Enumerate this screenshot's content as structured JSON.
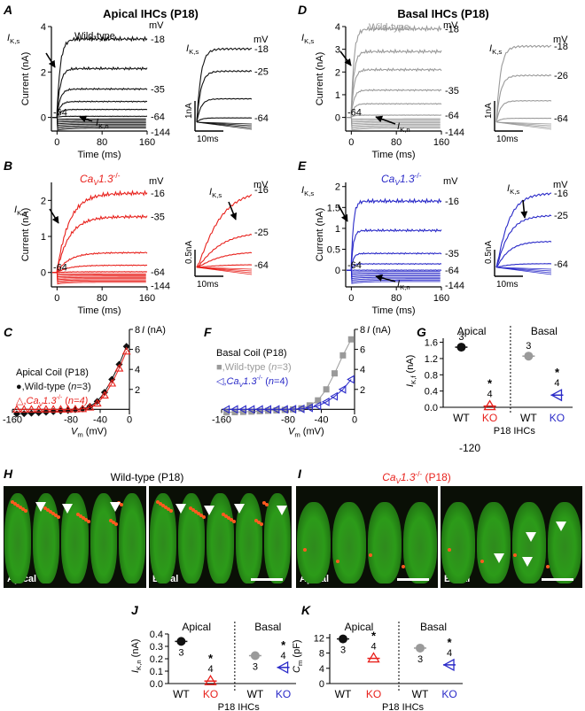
{
  "colors": {
    "wt": "#111111",
    "wt_basal": "#9a9a9a",
    "ko_apical": "#e8211c",
    "ko_basal": "#2a2ac8",
    "green": "#2c9b19",
    "spots": "#ff5a1f"
  },
  "panel_letters": [
    "A",
    "B",
    "C",
    "D",
    "E",
    "F",
    "G",
    "H",
    "I",
    "J",
    "K"
  ],
  "titles": {
    "apical": "Apical IHCs (P18)",
    "basal": "Basal IHCs (P18)",
    "wt_h": "Wild-type (P18)",
    "ko_i_prefix": "Ca",
    "ko_i_sub": "V",
    "ko_i_rest": "1.3",
    "ko_i_sup": "-/-",
    "ko_i_age": " (P18)"
  },
  "labels": {
    "wild_type": "Wild-type",
    "mv": "mV",
    "current_axis": "Current (nA)",
    "time_axis": "Time (ms)",
    "iks_ikf": "I",
    "iks_sub": "K,s",
    "ikf_sub": "K,f",
    "ikn_sub": "K,n",
    "plus": "+",
    "ko_prefix": "Ca",
    "ko_sub": "V",
    "ko_rest": "1.3",
    "ko_sup": "-/-",
    "scale_1na": "1nA",
    "scale_05na": "0.5nA",
    "scale_10ms": "10ms",
    "vm_axis": "V",
    "vm_sub": "m",
    "vm_unit": " (mV)",
    "i_axis": "I",
    "i_unit": " (nA)",
    "apical_coil": "Apical Coil (P18)",
    "basal_coil": "Basal Coil (P18)",
    "leg_wt": ",Wild-type (",
    "leg_n3": "n",
    "leg_n3_val": "=3)",
    "leg_ko": ",",
    "leg_n4_val": "=4)",
    "apical": "Apical",
    "basal": "Basal",
    "p18_ihcs": "P18 IHCs",
    "wt": "WT",
    "ko": "KO",
    "minus120": "-120",
    "ikf_axis": "I",
    "ikf_axis_sub": "K,f",
    "ikn_axis_sub": "K,n",
    "cm_axis": "C",
    "cm_axis_sub": "m",
    "na_unit": " (nA)",
    "pf_unit": " (pF)",
    "star": "*",
    "n3": "3",
    "n4": "4",
    "apical_img": "Apical",
    "basal_img": "Basal"
  },
  "traces": {
    "A_main": [
      {
        "v": "-18",
        "amp": 3.45
      },
      {
        "v": "",
        "amp": 2.15
      },
      {
        "v": "-35",
        "amp": 1.25
      },
      {
        "v": "",
        "amp": 0.7
      },
      {
        "v": "",
        "amp": 0.35
      },
      {
        "v": "-64",
        "amp": 0.05
      }
    ],
    "A_neg_count": 8,
    "A_inset": [
      {
        "v": "-18"
      },
      {
        "v": "-25"
      },
      {
        "v": ""
      },
      {
        "v": "-64"
      }
    ],
    "B_main": [
      {
        "v": "-16",
        "amp": 2.2
      },
      {
        "v": "-35",
        "amp": 1.55
      },
      {
        "v": "",
        "amp": 0.55
      },
      {
        "v": "",
        "amp": 0.2
      },
      {
        "v": "-64",
        "amp": 0.02
      }
    ],
    "B_inset": [
      {
        "v": "-16"
      },
      {
        "v": "-25"
      },
      {
        "v": ""
      },
      {
        "v": "-64"
      }
    ],
    "D_main": [
      {
        "v": "-18",
        "amp": 3.9
      },
      {
        "v": "",
        "amp": 2.9
      },
      {
        "v": "",
        "amp": 2.1
      },
      {
        "v": "-35",
        "amp": 1.2
      },
      {
        "v": "",
        "amp": 0.6
      },
      {
        "v": "-64",
        "amp": 0.1
      }
    ],
    "D_inset": [
      {
        "v": "-18"
      },
      {
        "v": "-26"
      },
      {
        "v": ""
      },
      {
        "v": "-64"
      }
    ],
    "E_main": [
      {
        "v": "-16",
        "amp": 1.65
      },
      {
        "v": "",
        "amp": 0.95
      },
      {
        "v": "-35",
        "amp": 0.4
      },
      {
        "v": "",
        "amp": 0.15
      },
      {
        "v": "-64",
        "amp": 0.0
      }
    ],
    "E_inset": [
      {
        "v": "-16"
      },
      {
        "v": "-25"
      },
      {
        "v": ""
      },
      {
        "v": "-64"
      }
    ]
  },
  "chart_data": [
    {
      "panel": "A",
      "type": "line",
      "title": "Apical IHCs (P18)",
      "xlabel": "Time (ms)",
      "ylabel": "Current (nA)",
      "xlim": [
        -10,
        160
      ],
      "ylim": [
        -0.6,
        4
      ],
      "x_ticks": [
        0,
        80,
        160
      ],
      "y_ticks": [
        0,
        2,
        4
      ],
      "x_tick_labels": [
        "0",
        "80",
        "160"
      ],
      "y_tick_labels": [
        "0",
        "2",
        "4"
      ],
      "series_names": [
        "-18",
        "-35",
        "-64",
        "-144"
      ]
    },
    {
      "panel": "B",
      "type": "line",
      "xlabel": "Time (ms)",
      "ylabel": "Current (nA)",
      "xlim": [
        -10,
        160
      ],
      "ylim": [
        -0.4,
        2.5
      ],
      "x_ticks": [
        0,
        80,
        160
      ],
      "y_ticks": [
        0,
        1,
        2
      ],
      "x_tick_labels": [
        "0",
        "80",
        "160"
      ],
      "y_tick_labels": [
        "0",
        "1",
        "2"
      ],
      "series_names": [
        "-16",
        "-35",
        "-64",
        "-144"
      ]
    },
    {
      "panel": "D",
      "type": "line",
      "title": "Basal IHCs (P18)",
      "xlabel": "Time (ms)",
      "ylabel": "Current (nA)",
      "xlim": [
        -10,
        160
      ],
      "ylim": [
        -0.6,
        4
      ],
      "x_ticks": [
        0,
        80,
        160
      ],
      "y_ticks": [
        0,
        1,
        2,
        3,
        4
      ],
      "x_tick_labels": [
        "0",
        "80",
        "160"
      ],
      "y_tick_labels": [
        "0",
        "1",
        "2",
        "3",
        "4"
      ],
      "series_names": [
        "-18",
        "-35",
        "-64",
        "-144"
      ]
    },
    {
      "panel": "E",
      "type": "line",
      "xlabel": "Time (ms)",
      "ylabel": "Current (nA)",
      "xlim": [
        -10,
        160
      ],
      "ylim": [
        -0.4,
        2.1
      ],
      "x_ticks": [
        0,
        80,
        160
      ],
      "y_ticks": [
        0,
        0.5,
        1,
        1.5,
        2
      ],
      "x_tick_labels": [
        "0",
        "80",
        "160"
      ],
      "y_tick_labels": [
        "0",
        "0.5",
        "1",
        "1.5",
        "2"
      ],
      "series_names": [
        "-16",
        "-35",
        "-64",
        "-144"
      ]
    },
    {
      "panel": "C",
      "type": "scatter",
      "xlabel": "Vm (mV)",
      "ylabel": "I (nA)",
      "xlim": [
        -160,
        0
      ],
      "ylim": [
        -0.5,
        8
      ],
      "x_ticks": [
        -160,
        -120,
        -80,
        -40,
        0
      ],
      "x_tick_labels": [
        "-160",
        "",
        "-80",
        "-40",
        "0"
      ],
      "y_ticks": [
        2,
        4,
        6,
        8
      ],
      "y_tick_labels": [
        "2",
        "4",
        "6",
        "8"
      ],
      "series": [
        {
          "name": "Wild-type",
          "x": [
            -154,
            -144,
            -134,
            -124,
            -114,
            -104,
            -94,
            -84,
            -74,
            -64,
            -54,
            -44,
            -34,
            -24,
            -14,
            -4
          ],
          "y": [
            -0.45,
            -0.42,
            -0.38,
            -0.33,
            -0.28,
            -0.22,
            -0.16,
            -0.1,
            -0.02,
            0.05,
            0.3,
            0.8,
            1.7,
            3.0,
            4.5,
            6.3
          ]
        },
        {
          "name": "Cav1.3-/-",
          "x": [
            -154,
            -144,
            -134,
            -124,
            -114,
            -104,
            -94,
            -84,
            -74,
            -64,
            -54,
            -44,
            -34,
            -24,
            -14,
            -4
          ],
          "y": [
            0.0,
            0.0,
            0.0,
            0.0,
            0.0,
            0.0,
            0.0,
            0.0,
            0.02,
            0.05,
            0.2,
            0.6,
            1.4,
            2.6,
            4.1,
            5.8
          ]
        }
      ]
    },
    {
      "panel": "F",
      "type": "scatter",
      "xlabel": "Vm (mV)",
      "ylabel": "I (nA)",
      "xlim": [
        -160,
        0
      ],
      "ylim": [
        -0.5,
        8
      ],
      "x_ticks": [
        -160,
        -120,
        -80,
        -40,
        0
      ],
      "x_tick_labels": [
        "-160",
        "",
        "-80",
        "-40",
        "0"
      ],
      "y_ticks": [
        2,
        4,
        6,
        8
      ],
      "y_tick_labels": [
        "2",
        "4",
        "6",
        "8"
      ],
      "series": [
        {
          "name": "Wild-type",
          "x": [
            -154,
            -144,
            -134,
            -124,
            -114,
            -104,
            -94,
            -84,
            -74,
            -64,
            -54,
            -44,
            -34,
            -24,
            -14,
            -4
          ],
          "y": [
            -0.3,
            -0.28,
            -0.25,
            -0.22,
            -0.18,
            -0.14,
            -0.1,
            -0.05,
            0.0,
            0.1,
            0.4,
            0.9,
            2.0,
            3.6,
            5.4,
            7.0
          ]
        },
        {
          "name": "Cav1.3-/-",
          "x": [
            -154,
            -144,
            -134,
            -124,
            -114,
            -104,
            -94,
            -84,
            -74,
            -64,
            -54,
            -44,
            -34,
            -24,
            -14,
            -4
          ],
          "y": [
            0.0,
            0.0,
            0.0,
            0.0,
            0.0,
            0.0,
            0.0,
            0.0,
            0.02,
            0.05,
            0.15,
            0.35,
            0.75,
            1.3,
            2.0,
            3.0
          ]
        }
      ]
    },
    {
      "panel": "G",
      "type": "scatter",
      "ylabel": "IK,f (nA)",
      "ylim": [
        0,
        1.7
      ],
      "y_ticks": [
        0,
        0.4,
        0.8,
        1.2,
        1.6
      ],
      "y_tick_labels": [
        "0.0",
        "0.4",
        "0.8",
        "1.2",
        "1.6"
      ],
      "categories": [
        "WT",
        "KO",
        "WT",
        "KO"
      ],
      "values": [
        1.48,
        0.03,
        1.26,
        0.3
      ],
      "n": [
        "3",
        "4",
        "3",
        "4"
      ],
      "star": [
        false,
        true,
        false,
        true
      ]
    },
    {
      "panel": "J",
      "type": "scatter",
      "ylabel": "IK,n (nA)",
      "ylim": [
        0,
        0.4
      ],
      "y_ticks": [
        0,
        0.1,
        0.2,
        0.3,
        0.4
      ],
      "y_tick_labels": [
        "0.0",
        "0.1",
        "0.2",
        "0.3",
        "0.4"
      ],
      "categories": [
        "WT",
        "KO",
        "WT",
        "KO"
      ],
      "values": [
        0.34,
        0.02,
        0.225,
        0.13
      ],
      "n": [
        "3",
        "4",
        "3",
        "4"
      ],
      "star": [
        false,
        true,
        false,
        true
      ]
    },
    {
      "panel": "K",
      "type": "scatter",
      "ylabel": "Cm (pF)",
      "ylim": [
        0,
        13
      ],
      "y_ticks": [
        0,
        4,
        8,
        12
      ],
      "y_tick_labels": [
        "0",
        "4",
        "8",
        "12"
      ],
      "categories": [
        "WT",
        "KO",
        "WT",
        "KO"
      ],
      "values": [
        11.7,
        6.6,
        9.3,
        4.9
      ],
      "n": [
        "3",
        "4",
        "3",
        "4"
      ],
      "star": [
        false,
        true,
        false,
        true
      ]
    }
  ]
}
